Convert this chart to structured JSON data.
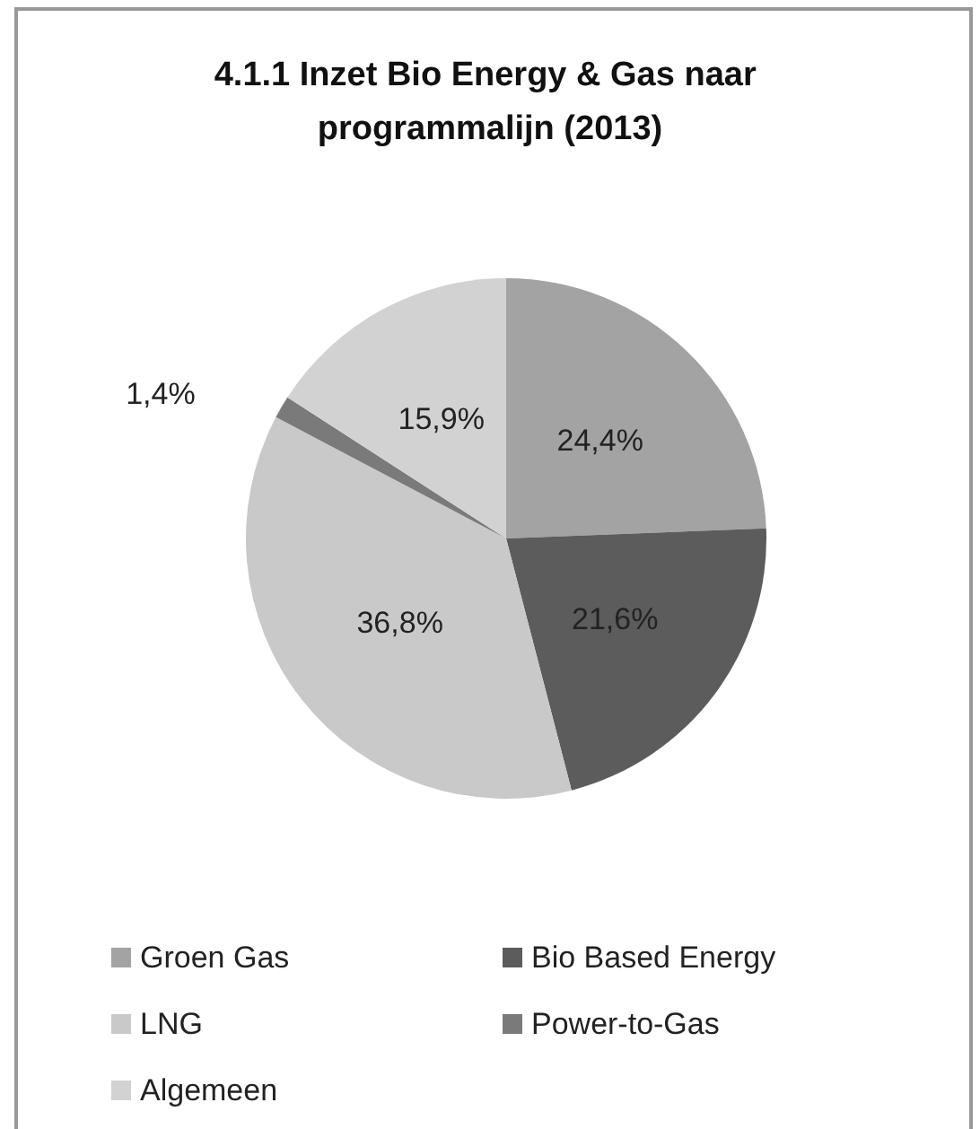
{
  "chart_data": {
    "type": "pie",
    "title": "4.1.1 Inzet Bio Energy & Gas naar programmalijn (2013)",
    "categories": [
      "Groen Gas",
      "Bio Based Energy",
      "LNG",
      "Power-to-Gas",
      "Algemeen"
    ],
    "values": [
      24.4,
      21.6,
      36.8,
      1.4,
      15.9
    ],
    "colors": [
      "#a3a3a3",
      "#5c5c5c",
      "#c9c9c9",
      "#7a7a7a",
      "#d2d2d2"
    ],
    "value_labels": [
      "24,4%",
      "21,6%",
      "36,8%",
      "1,4%",
      "15,9%"
    ],
    "legend": "bottom"
  }
}
